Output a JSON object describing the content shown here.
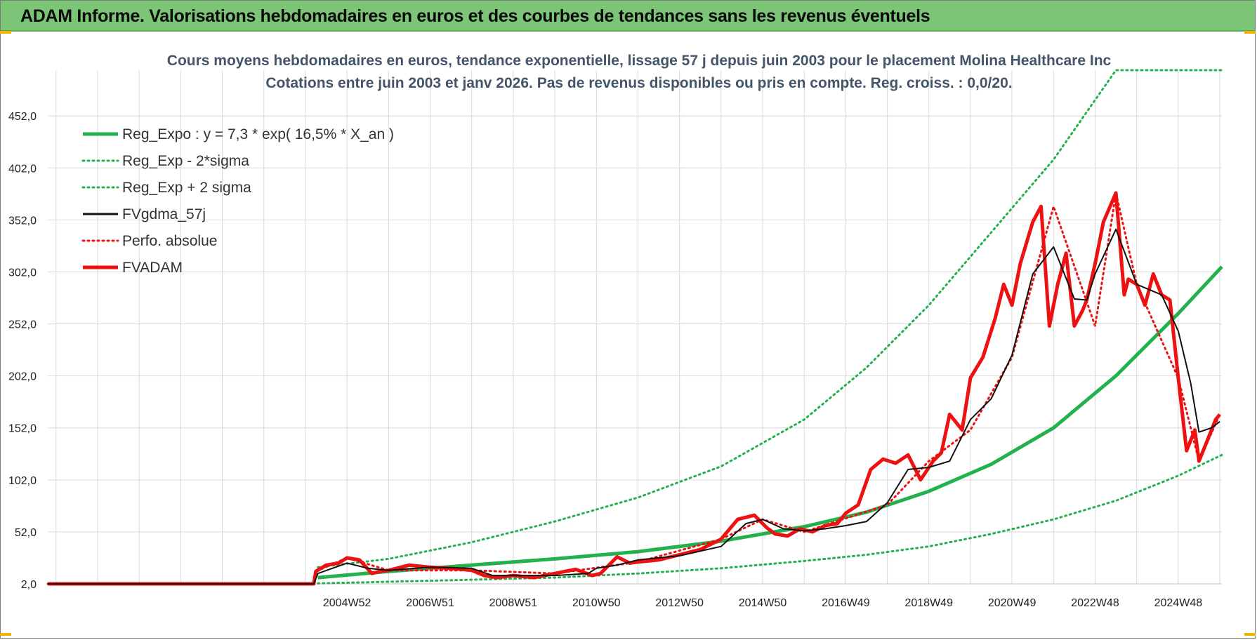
{
  "header": {
    "banner_title": "ADAM Informe. Valorisations hebdomadaires en euros et des courbes de tendances sans les revenus éventuels"
  },
  "colors": {
    "banner_bg": "#7cc576",
    "trend_green": "#22b14c",
    "price_red": "#ee1111",
    "smooth_black": "#111111",
    "grid": "#d9d9d9",
    "title": "#44546a"
  },
  "chart_data": {
    "type": "line",
    "title": "Cours moyens hebdomadaires en euros, tendance exponentielle, lissage 57 j depuis juin 2003 pour le placement Molina Healthcare Inc",
    "subtitle": "Cotations entre juin 2003 et janv 2026.  Pas de revenus disponibles ou pris en compte. Reg. croiss. : 0,0/20.",
    "xlabel": "",
    "ylabel": "",
    "x_range": [
      1997.8,
      2026.05
    ],
    "ylim": [
      2,
      496
    ],
    "y_ticks": [
      2.0,
      52.0,
      102.0,
      152.0,
      202.0,
      252.0,
      302.0,
      352.0,
      402.0,
      452.0
    ],
    "y_tick_labels": [
      "2,0",
      "52,0",
      "102,0",
      "152,0",
      "202,0",
      "252,0",
      "302,0",
      "352,0",
      "402,0",
      "452,0"
    ],
    "x_ticks": [
      {
        "label": "2004W52",
        "x": 2005.0
      },
      {
        "label": "2006W51",
        "x": 2007.0
      },
      {
        "label": "2008W51",
        "x": 2009.0
      },
      {
        "label": "2010W50",
        "x": 2011.0
      },
      {
        "label": "2012W50",
        "x": 2013.0
      },
      {
        "label": "2014W50",
        "x": 2015.0
      },
      {
        "label": "2016W49",
        "x": 2017.0
      },
      {
        "label": "2018W49",
        "x": 2019.0
      },
      {
        "label": "2020W49",
        "x": 2021.0
      },
      {
        "label": "2022W48",
        "x": 2023.0
      },
      {
        "label": "2024W48",
        "x": 2025.0
      }
    ],
    "grid": true,
    "legend_position": "top-left",
    "legend": [
      {
        "name": "Reg_Expo : y = 7,3 * exp( 16,5% *  X_an )",
        "style": "solid-thick",
        "color": "#22b14c"
      },
      {
        "name": "Reg_Exp - 2*sigma",
        "style": "dotted",
        "color": "#22b14c"
      },
      {
        "name": "Reg_Exp + 2 sigma",
        "style": "dotted",
        "color": "#22b14c"
      },
      {
        "name": "FVgdma_57j",
        "style": "solid",
        "color": "#111111"
      },
      {
        "name": "Perfo. absolue",
        "style": "dotted",
        "color": "#ee1111"
      },
      {
        "name": "FVADAM",
        "style": "solid-thick",
        "color": "#ee1111"
      }
    ],
    "series": [
      {
        "name": "Reg_Expo : y = 7,3 * exp( 16,5% *  X_an )",
        "x": [
          2004.3,
          2006.0,
          2008.0,
          2010.0,
          2012.0,
          2014.0,
          2016.0,
          2017.5,
          2019.0,
          2020.5,
          2022.0,
          2023.5,
          2025.0,
          2026.05
        ],
        "values": [
          8,
          14,
          20,
          26,
          33,
          43,
          57,
          71,
          91,
          117,
          152,
          202,
          262,
          307
        ]
      },
      {
        "name": "Reg_Exp - 2*sigma",
        "x": [
          2004.3,
          2006.0,
          2008.0,
          2010.0,
          2012.0,
          2014.0,
          2016.0,
          2017.5,
          2019.0,
          2020.5,
          2022.0,
          2023.5,
          2025.0,
          2026.05
        ],
        "values": [
          2.5,
          4,
          6,
          8,
          12,
          17,
          24,
          30,
          38,
          50,
          64,
          82,
          106,
          126
        ]
      },
      {
        "name": "Reg_Exp + 2 sigma",
        "x": [
          2004.3,
          2006.0,
          2008.0,
          2010.0,
          2012.0,
          2014.0,
          2016.0,
          2017.5,
          2019.0,
          2020.5,
          2022.0,
          2023.5,
          2024.7,
          2026.05
        ],
        "values": [
          18,
          26,
          42,
          62,
          85,
          115,
          160,
          210,
          270,
          340,
          410,
          496,
          496,
          496
        ]
      },
      {
        "name": "FVgdma_57j",
        "x": [
          1997.8,
          2004.2,
          2004.3,
          2005.0,
          2005.5,
          2006.0,
          2007.0,
          2008.0,
          2008.5,
          2009.0,
          2010.0,
          2010.8,
          2011.0,
          2011.5,
          2012.0,
          2013.0,
          2014.0,
          2014.6,
          2015.0,
          2015.5,
          2016.0,
          2016.5,
          2017.0,
          2017.5,
          2018.0,
          2018.5,
          2019.0,
          2019.5,
          2020.0,
          2020.5,
          2021.0,
          2021.5,
          2022.0,
          2022.5,
          2022.8,
          2023.0,
          2023.5,
          2024.0,
          2024.3,
          2024.6,
          2025.0,
          2025.3,
          2025.5,
          2025.8,
          2026.0
        ],
        "values": [
          2,
          2,
          12,
          22,
          17,
          15,
          18,
          17,
          10,
          10,
          10,
          12,
          17,
          20,
          25,
          29,
          38,
          60,
          64,
          55,
          53,
          55,
          58,
          62,
          80,
          112,
          114,
          120,
          160,
          180,
          222,
          300,
          326,
          276,
          275,
          300,
          343,
          290,
          285,
          280,
          245,
          195,
          148,
          152,
          158
        ]
      },
      {
        "name": "FVADAM",
        "x": [
          1997.8,
          2004.2,
          2004.25,
          2004.5,
          2004.8,
          2005.0,
          2005.3,
          2005.6,
          2005.8,
          2006.0,
          2006.5,
          2007.0,
          2007.5,
          2008.0,
          2008.3,
          2008.6,
          2009.0,
          2009.5,
          2010.0,
          2010.5,
          2010.9,
          2011.1,
          2011.5,
          2011.8,
          2012.0,
          2012.5,
          2013.0,
          2013.5,
          2014.0,
          2014.4,
          2014.8,
          2015.1,
          2015.3,
          2015.6,
          2015.9,
          2016.2,
          2016.5,
          2016.8,
          2017.0,
          2017.3,
          2017.6,
          2017.9,
          2018.2,
          2018.5,
          2018.8,
          2019.1,
          2019.3,
          2019.5,
          2019.8,
          2020.0,
          2020.3,
          2020.6,
          2020.8,
          2021.0,
          2021.2,
          2021.5,
          2021.7,
          2021.9,
          2022.1,
          2022.3,
          2022.5,
          2022.7,
          2022.8,
          2023.0,
          2023.2,
          2023.5,
          2023.7,
          2023.8,
          2024.0,
          2024.2,
          2024.4,
          2024.6,
          2024.8,
          2025.0,
          2025.2,
          2025.4,
          2025.5,
          2025.7,
          2025.9,
          2026.0
        ],
        "values": [
          2,
          2,
          14,
          20,
          22,
          27,
          25,
          12,
          14,
          15,
          20,
          18,
          17,
          15,
          10,
          8,
          10,
          8,
          12,
          16,
          10,
          12,
          28,
          22,
          23,
          25,
          30,
          35,
          45,
          64,
          68,
          56,
          50,
          48,
          55,
          52,
          58,
          60,
          70,
          78,
          112,
          122,
          118,
          126,
          102,
          120,
          128,
          165,
          150,
          200,
          220,
          258,
          290,
          270,
          310,
          350,
          365,
          250,
          290,
          320,
          250,
          265,
          275,
          310,
          350,
          378,
          280,
          295,
          290,
          270,
          300,
          280,
          275,
          200,
          130,
          150,
          120,
          140,
          160,
          165
        ]
      },
      {
        "name": "Perfo. absolue",
        "x": [
          1997.8,
          2004.2,
          2004.25,
          2005.0,
          2006.0,
          2008.0,
          2010.0,
          2012.0,
          2014.0,
          2015.0,
          2016.0,
          2018.0,
          2019.0,
          2020.0,
          2021.0,
          2022.0,
          2023.0,
          2023.5,
          2024.0,
          2025.0,
          2025.5,
          2026.0
        ],
        "values": [
          2,
          2,
          14,
          27,
          15,
          15,
          12,
          23,
          45,
          64,
          52,
          78,
          120,
          150,
          220,
          365,
          250,
          378,
          290,
          200,
          120,
          165
        ]
      }
    ]
  }
}
